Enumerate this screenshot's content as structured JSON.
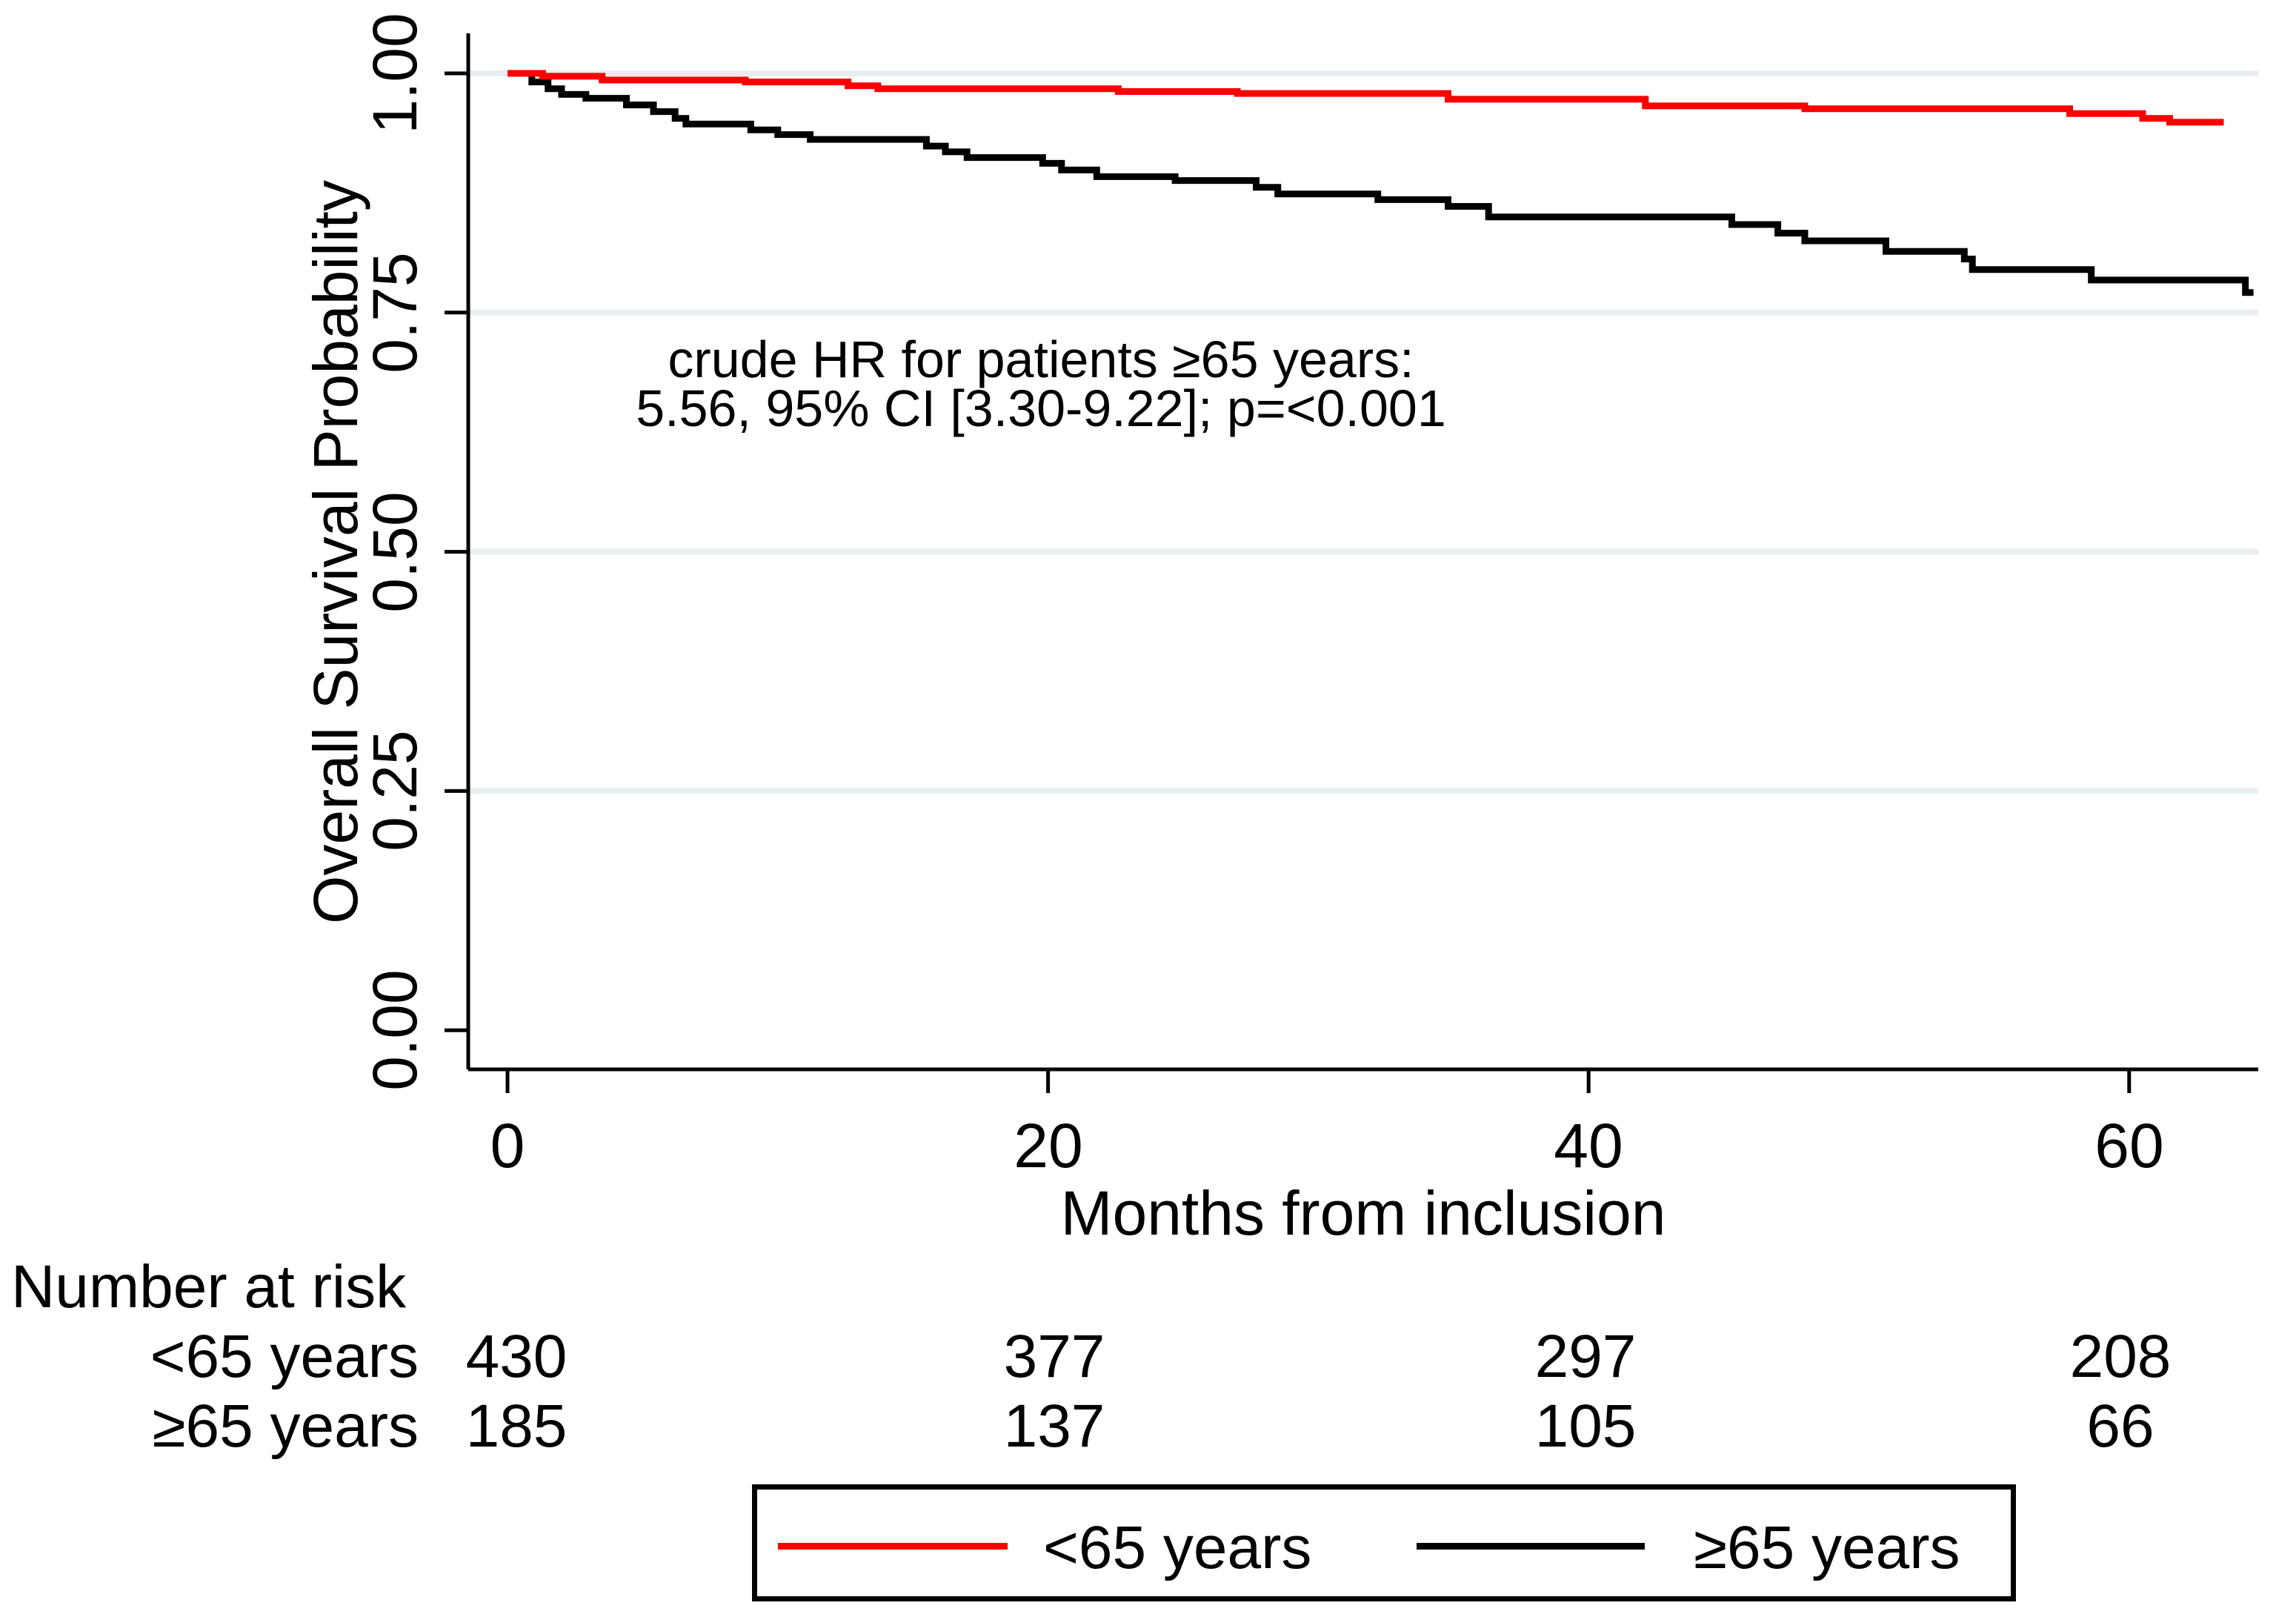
{
  "chart_data": {
    "type": "line",
    "subtype": "kaplan-meier-step",
    "title": "",
    "xlabel": "Months from inclusion",
    "ylabel": "Overall Survival Probability",
    "xlim": [
      0,
      65
    ],
    "ylim": [
      0,
      1.05
    ],
    "x_ticks": [
      "0",
      "20",
      "40",
      "60"
    ],
    "x_tick_values": [
      0,
      20,
      40,
      60
    ],
    "y_ticks": [
      "0.00",
      "0.25",
      "0.50",
      "0.75",
      "1.00"
    ],
    "y_tick_values": [
      0,
      0.25,
      0.5,
      0.75,
      1.0
    ],
    "grid": true,
    "grid_levels": [
      0.25,
      0.5,
      0.75,
      1.0
    ],
    "grid_color": "#e9eff1",
    "axis_color": "#000000",
    "legend_position": "bottom",
    "annotation": {
      "line1": "crude HR for patients ≥65 years:",
      "line2": "5.56, 95% CI [3.30-9.22]; p=<0.001"
    },
    "series": [
      {
        "name": "<65 years",
        "color": "#fa0000",
        "end": 63.5,
        "points": [
          [
            0,
            1.0
          ],
          [
            1.3,
            0.997
          ],
          [
            3.5,
            0.993
          ],
          [
            8.8,
            0.991
          ],
          [
            12.6,
            0.987
          ],
          [
            13.7,
            0.984
          ],
          [
            22.6,
            0.981
          ],
          [
            27.0,
            0.979
          ],
          [
            34.8,
            0.973
          ],
          [
            42.1,
            0.966
          ],
          [
            48.0,
            0.963
          ],
          [
            57.8,
            0.958
          ],
          [
            60.5,
            0.953
          ],
          [
            61.5,
            0.949
          ]
        ]
      },
      {
        "name": "≥65 years",
        "color": "#000000",
        "end": 64.6,
        "points": [
          [
            0,
            1.0
          ],
          [
            0.9,
            0.991
          ],
          [
            1.5,
            0.984
          ],
          [
            2.0,
            0.978
          ],
          [
            2.9,
            0.974
          ],
          [
            4.4,
            0.967
          ],
          [
            5.4,
            0.96
          ],
          [
            6.2,
            0.953
          ],
          [
            6.6,
            0.947
          ],
          [
            9.0,
            0.941
          ],
          [
            10.0,
            0.936
          ],
          [
            11.2,
            0.931
          ],
          [
            15.5,
            0.924
          ],
          [
            16.2,
            0.918
          ],
          [
            17.0,
            0.912
          ],
          [
            19.8,
            0.906
          ],
          [
            20.5,
            0.899
          ],
          [
            21.8,
            0.892
          ],
          [
            24.7,
            0.888
          ],
          [
            27.7,
            0.881
          ],
          [
            28.5,
            0.874
          ],
          [
            32.2,
            0.868
          ],
          [
            34.8,
            0.861
          ],
          [
            36.3,
            0.85
          ],
          [
            45.3,
            0.842
          ],
          [
            47.0,
            0.833
          ],
          [
            48.0,
            0.825
          ],
          [
            51.0,
            0.814
          ],
          [
            53.9,
            0.806
          ],
          [
            54.2,
            0.795
          ],
          [
            58.6,
            0.784
          ],
          [
            64.3,
            0.771
          ]
        ]
      }
    ],
    "number_at_risk": {
      "title": "Number at risk",
      "months": [
        0,
        20,
        40,
        60
      ],
      "rows": [
        {
          "label": "<65 years",
          "values": [
            "430",
            "377",
            "297",
            "208"
          ]
        },
        {
          "label": "≥65 years",
          "values": [
            "185",
            "137",
            "105",
            "66"
          ]
        }
      ]
    },
    "legend": [
      {
        "label": "<65 years",
        "color": "#fa0000"
      },
      {
        "label": "≥65 years",
        "color": "#000000"
      }
    ]
  }
}
